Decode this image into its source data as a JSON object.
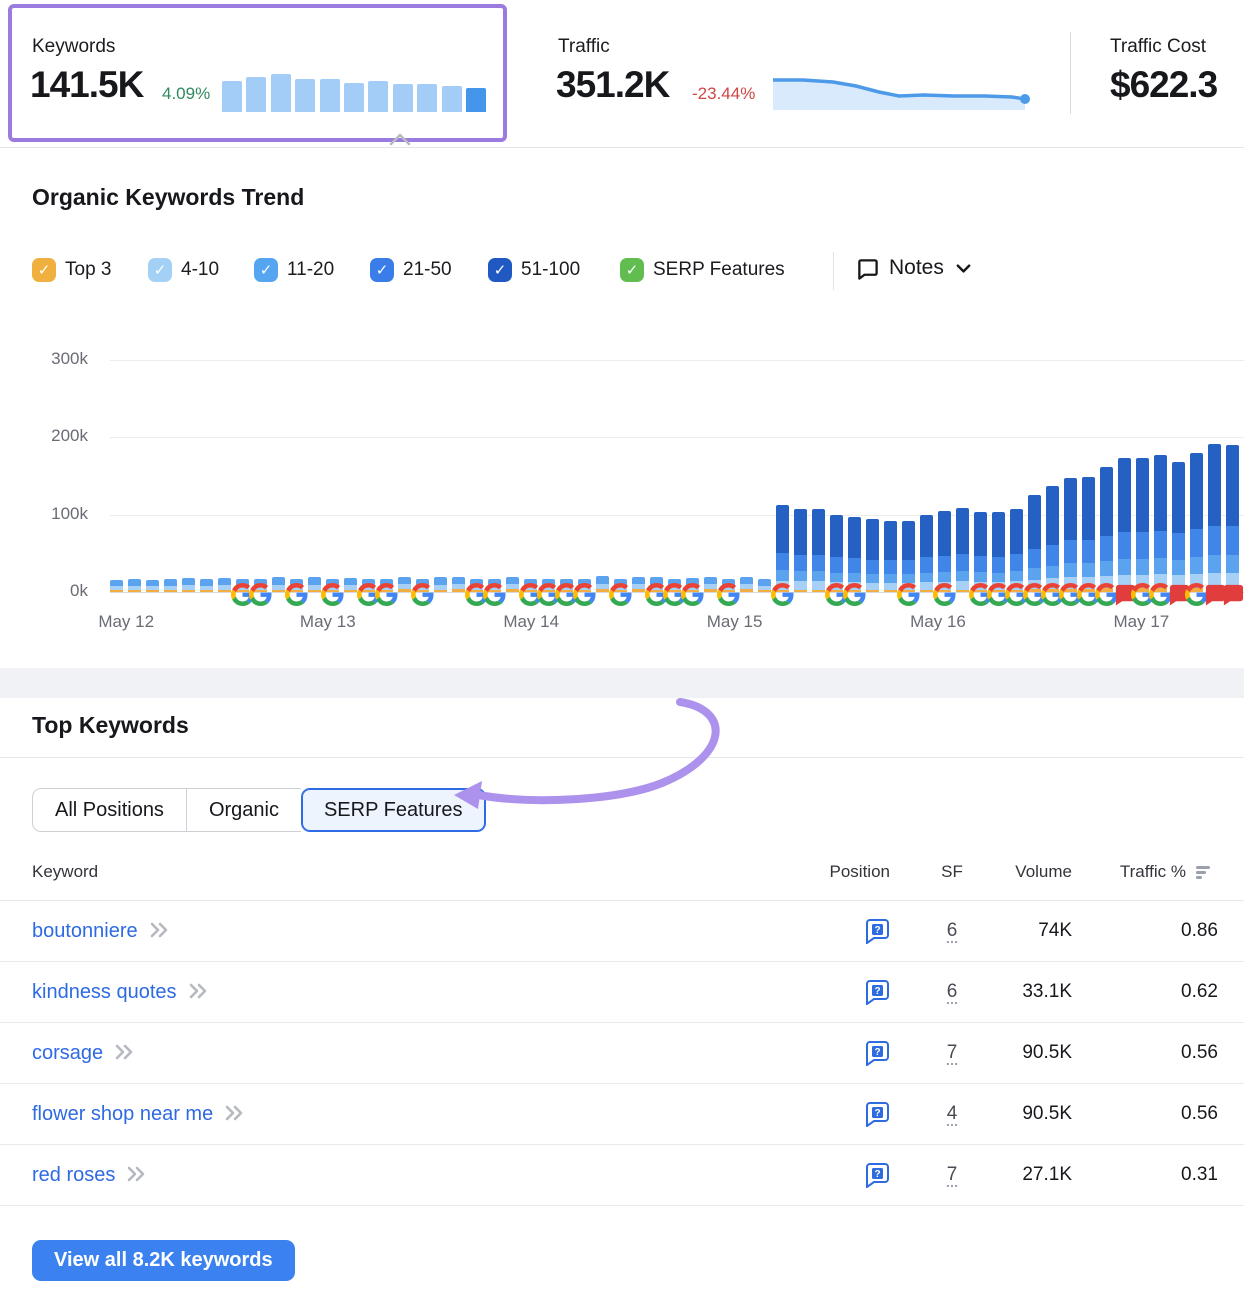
{
  "metrics": {
    "keywords": {
      "label": "Keywords",
      "value": "141.5K",
      "change": "4.09%"
    },
    "traffic": {
      "label": "Traffic",
      "value": "351.2K",
      "change": "-23.44%"
    },
    "traffic_cost": {
      "label": "Traffic Cost",
      "value": "$622.3"
    }
  },
  "trend": {
    "title": "Organic Keywords Trend",
    "legend": [
      {
        "label": "Top 3",
        "color": "#f0b03f",
        "checked": true
      },
      {
        "label": "4-10",
        "color": "#a4d0f5",
        "checked": true
      },
      {
        "label": "11-20",
        "color": "#55a5f0",
        "checked": true
      },
      {
        "label": "21-50",
        "color": "#3b7de8",
        "checked": true
      },
      {
        "label": "51-100",
        "color": "#2059c2",
        "checked": true
      },
      {
        "label": "SERP Features",
        "color": "#61bd4f",
        "checked": true
      }
    ],
    "notes_label": "Notes"
  },
  "chart_data": [
    {
      "id": "keywords_minibar",
      "type": "bar",
      "title": "Keywords mini trend",
      "values_relative": [
        0.82,
        0.93,
        1.0,
        0.86,
        0.88,
        0.77,
        0.81,
        0.74,
        0.74,
        0.69,
        0.62
      ],
      "bar_color": "#a3cdf6",
      "last_bar_color": "#4496ea"
    },
    {
      "id": "traffic_sparkline",
      "type": "area",
      "title": "Traffic mini trend (declining)",
      "points_norm": [
        [
          0,
          0.22
        ],
        [
          0.12,
          0.22
        ],
        [
          0.24,
          0.26
        ],
        [
          0.33,
          0.36
        ],
        [
          0.42,
          0.52
        ],
        [
          0.5,
          0.62
        ],
        [
          0.6,
          0.6
        ],
        [
          0.72,
          0.63
        ],
        [
          0.84,
          0.62
        ],
        [
          0.95,
          0.66
        ],
        [
          1,
          0.72
        ]
      ],
      "line_color": "#4d9ae8",
      "fill_color": "#d9eafc"
    },
    {
      "id": "organic_trend",
      "type": "stacked-bar",
      "title": "Organic Keywords Trend",
      "unit": "thousands",
      "ylim": [
        0,
        300
      ],
      "yticks": [
        "0k",
        "100k",
        "200k",
        "300k"
      ],
      "xticklabels": [
        "May 12",
        "May 13",
        "May 14",
        "May 15",
        "May 16",
        "May 17"
      ],
      "xtick_bar_positions": [
        0.4,
        11.6,
        22.9,
        34.2,
        45.5,
        56.8
      ],
      "series_order_bottom_to_top": [
        "Top 3",
        "4-10",
        "11-20",
        "21-50",
        "51-100"
      ],
      "series_colors": [
        "#f2ae43",
        "#a6d0f5",
        "#5ba3ee",
        "#3f86e8",
        "#2461c2"
      ],
      "marker_legend": {
        "g": "google-serp-icon",
        "note": "note-flag-red"
      },
      "bars": [
        [
          3,
          5,
          8,
          0,
          0,
          ""
        ],
        [
          3,
          5,
          9,
          0,
          0,
          ""
        ],
        [
          3,
          5,
          8,
          0,
          0,
          ""
        ],
        [
          3,
          5,
          9,
          0,
          0,
          ""
        ],
        [
          3,
          6,
          9,
          0,
          0,
          ""
        ],
        [
          3,
          5,
          9,
          0,
          0,
          ""
        ],
        [
          3,
          6,
          9,
          0,
          0,
          ""
        ],
        [
          3,
          5,
          9,
          0,
          0,
          "g"
        ],
        [
          3,
          5,
          9,
          0,
          0,
          "g"
        ],
        [
          3,
          6,
          10,
          0,
          0,
          ""
        ],
        [
          3,
          5,
          9,
          0,
          0,
          "g"
        ],
        [
          3,
          6,
          10,
          0,
          0,
          ""
        ],
        [
          3,
          5,
          9,
          0,
          0,
          "g"
        ],
        [
          3,
          6,
          9,
          0,
          0,
          ""
        ],
        [
          3,
          5,
          9,
          0,
          0,
          "g"
        ],
        [
          3,
          5,
          9,
          0,
          0,
          "g"
        ],
        [
          4,
          6,
          10,
          0,
          0,
          ""
        ],
        [
          3,
          5,
          9,
          0,
          0,
          "g"
        ],
        [
          3,
          6,
          10,
          0,
          0,
          ""
        ],
        [
          4,
          6,
          10,
          0,
          0,
          ""
        ],
        [
          3,
          5,
          9,
          0,
          0,
          "g"
        ],
        [
          3,
          5,
          9,
          0,
          0,
          "g"
        ],
        [
          4,
          6,
          10,
          0,
          0,
          ""
        ],
        [
          3,
          5,
          9,
          0,
          0,
          "g"
        ],
        [
          3,
          5,
          9,
          0,
          0,
          "g"
        ],
        [
          3,
          5,
          9,
          0,
          0,
          "g"
        ],
        [
          3,
          5,
          9,
          0,
          0,
          "g"
        ],
        [
          4,
          6,
          11,
          0,
          0,
          ""
        ],
        [
          3,
          5,
          9,
          0,
          0,
          "g"
        ],
        [
          4,
          6,
          10,
          0,
          0,
          ""
        ],
        [
          3,
          6,
          10,
          0,
          0,
          "g"
        ],
        [
          3,
          5,
          9,
          0,
          0,
          "g"
        ],
        [
          3,
          6,
          9,
          0,
          0,
          "g"
        ],
        [
          4,
          6,
          10,
          0,
          0,
          ""
        ],
        [
          3,
          5,
          9,
          0,
          0,
          "g"
        ],
        [
          4,
          6,
          10,
          0,
          0,
          ""
        ],
        [
          3,
          5,
          9,
          0,
          0,
          ""
        ],
        [
          3,
          11,
          14,
          23,
          62,
          "g"
        ],
        [
          3,
          11,
          13,
          21,
          59,
          ""
        ],
        [
          3,
          11,
          13,
          21,
          59,
          ""
        ],
        [
          3,
          10,
          12,
          20,
          54,
          "g"
        ],
        [
          3,
          10,
          12,
          19,
          53,
          "g"
        ],
        [
          3,
          9,
          11,
          19,
          53,
          ""
        ],
        [
          3,
          9,
          11,
          18,
          51,
          ""
        ],
        [
          3,
          9,
          11,
          18,
          51,
          "g"
        ],
        [
          3,
          10,
          12,
          20,
          55,
          ""
        ],
        [
          3,
          10,
          13,
          21,
          58,
          "g"
        ],
        [
          3,
          11,
          13,
          22,
          60,
          ""
        ],
        [
          3,
          10,
          13,
          21,
          57,
          "g"
        ],
        [
          3,
          10,
          12,
          21,
          57,
          "g"
        ],
        [
          3,
          11,
          13,
          22,
          59,
          "g"
        ],
        [
          4,
          12,
          15,
          25,
          69,
          "g"
        ],
        [
          4,
          14,
          16,
          27,
          76,
          "g"
        ],
        [
          4,
          15,
          18,
          30,
          81,
          "g"
        ],
        [
          4,
          15,
          18,
          30,
          82,
          "g"
        ],
        [
          5,
          16,
          19,
          32,
          90,
          "g"
        ],
        [
          5,
          17,
          21,
          35,
          95,
          "note"
        ],
        [
          5,
          17,
          21,
          35,
          95,
          "g"
        ],
        [
          5,
          18,
          21,
          35,
          98,
          "g"
        ],
        [
          5,
          17,
          20,
          34,
          92,
          "note"
        ],
        [
          5,
          18,
          22,
          36,
          99,
          "g"
        ],
        [
          6,
          19,
          23,
          38,
          105,
          "note"
        ],
        [
          6,
          19,
          23,
          38,
          104,
          "note"
        ]
      ]
    }
  ],
  "keywords_section": {
    "title": "Top Keywords",
    "tabs": [
      {
        "label": "All Positions",
        "active": false
      },
      {
        "label": "Organic",
        "active": false
      },
      {
        "label": "SERP Features",
        "active": true
      }
    ],
    "table": {
      "columns": [
        "Keyword",
        "Position",
        "SF",
        "Volume",
        "Traffic %"
      ],
      "rows": [
        {
          "keyword": "boutonniere",
          "position_icon": "serp-question-bubble",
          "sf": "6",
          "volume": "74K",
          "traffic_pct": "0.86"
        },
        {
          "keyword": "kindness quotes",
          "position_icon": "serp-question-bubble",
          "sf": "6",
          "volume": "33.1K",
          "traffic_pct": "0.62"
        },
        {
          "keyword": "corsage",
          "position_icon": "serp-question-bubble",
          "sf": "7",
          "volume": "90.5K",
          "traffic_pct": "0.56"
        },
        {
          "keyword": "flower shop near me",
          "position_icon": "serp-question-bubble",
          "sf": "4",
          "volume": "90.5K",
          "traffic_pct": "0.56"
        },
        {
          "keyword": "red roses",
          "position_icon": "serp-question-bubble",
          "sf": "7",
          "volume": "27.1K",
          "traffic_pct": "0.31"
        }
      ]
    },
    "view_all_label": "View all 8.2K keywords"
  },
  "colors": {
    "highlight_purple": "#9c7bdf",
    "arrow_purple": "#ac92ec",
    "link_blue": "#2d6ae3",
    "button_blue": "#3b82f0",
    "positive_green": "#2f8a5d",
    "negative_red": "#d04545",
    "note_flag_red": "#e13d3d"
  }
}
